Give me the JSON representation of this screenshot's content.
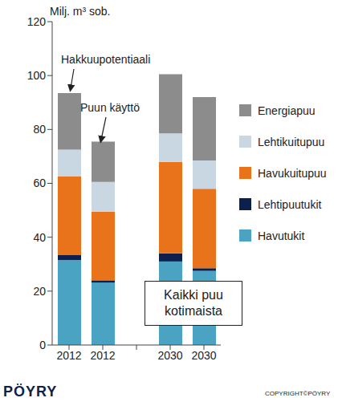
{
  "chart_data": {
    "type": "bar",
    "stacked": true,
    "y_label": "Milj. m³ sob.",
    "categories": [
      "2012",
      "2012",
      null,
      "2030",
      "2030"
    ],
    "series": [
      {
        "name": "Havutukit",
        "color": "#4ba3c4",
        "values": [
          31.5,
          23.2,
          null,
          31,
          27.5
        ]
      },
      {
        "name": "Lehtipuutukit",
        "color": "#0d1f4c",
        "values": [
          2,
          0.8,
          null,
          3,
          1
        ]
      },
      {
        "name": "Havukuitupuu",
        "color": "#e8731a",
        "values": [
          29,
          25.5,
          null,
          34,
          29.5
        ]
      },
      {
        "name": "Lehtikuitupuu",
        "color": "#c9d7e3",
        "values": [
          10,
          11,
          null,
          10.5,
          10.5
        ]
      },
      {
        "name": "Energiapuu",
        "color": "#8c8c8c",
        "values": [
          21,
          15,
          null,
          22,
          23.5
        ]
      }
    ],
    "ylim": [
      0,
      120
    ],
    "yticks": [
      0,
      20,
      40,
      60,
      80,
      100,
      120
    ],
    "grid": false,
    "legend": "right",
    "annotations": [
      "Hakkuupotentiaali",
      "Puun käyttö"
    ],
    "box_text": [
      "Kaikki puu",
      "kotimaista"
    ]
  },
  "footer": {
    "logo": "PÖYRY",
    "copyright": "COPYRIGHT©PÖYRY"
  }
}
